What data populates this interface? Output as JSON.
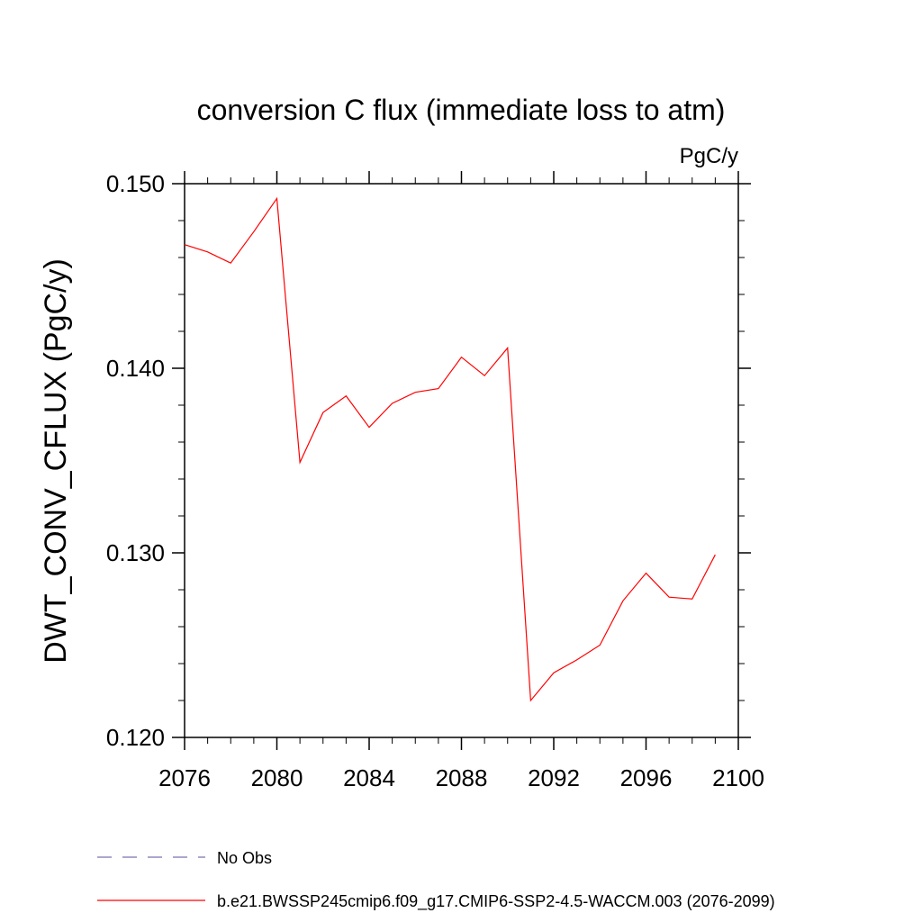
{
  "chart_data": {
    "type": "line",
    "title": "conversion C flux (immediate loss to atm)",
    "units_label": "PgC/y",
    "ylabel": "DWT_CONV_CFLUX  (PgC/y)",
    "xlabel": "",
    "xlim": [
      2076,
      2100
    ],
    "ylim": [
      0.12,
      0.15
    ],
    "x_ticks": [
      2076,
      2080,
      2084,
      2088,
      2092,
      2096,
      2100
    ],
    "x_tick_labels": [
      "2076",
      "2080",
      "2084",
      "2088",
      "2092",
      "2096",
      "2100"
    ],
    "y_ticks": [
      0.12,
      0.13,
      0.14,
      0.15
    ],
    "y_tick_labels": [
      "0.120",
      "0.130",
      "0.140",
      "0.150"
    ],
    "grid": false,
    "legend_position": "bottom",
    "series": [
      {
        "name": "b.e21.BWSSP245cmip6.f09_g17.CMIP6-SSP2-4.5-WACCM.003 (2076-2099)",
        "color": "#ff0000",
        "style": "solid",
        "x": [
          2076,
          2077,
          2078,
          2079,
          2080,
          2081,
          2082,
          2083,
          2084,
          2085,
          2086,
          2087,
          2088,
          2089,
          2090,
          2091,
          2092,
          2093,
          2094,
          2095,
          2096,
          2097,
          2098,
          2099
        ],
        "y": [
          0.1467,
          0.1463,
          0.1457,
          0.1474,
          0.1492,
          0.1349,
          0.1376,
          0.1385,
          0.1368,
          0.1381,
          0.1387,
          0.1389,
          0.1406,
          0.1396,
          0.1411,
          0.122,
          0.1235,
          0.1242,
          0.125,
          0.1274,
          0.1289,
          0.1276,
          0.1275,
          0.1299
        ]
      }
    ],
    "legend": [
      {
        "label": "No Obs",
        "color": "#7a6fb0",
        "style": "dashed"
      },
      {
        "label": "b.e21.BWSSP245cmip6.f09_g17.CMIP6-SSP2-4.5-WACCM.003 (2076-2099)",
        "color": "#ff0000",
        "style": "solid"
      }
    ]
  }
}
